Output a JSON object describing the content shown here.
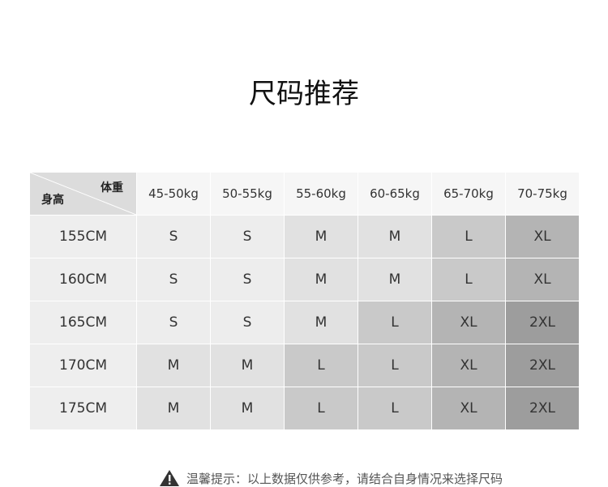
{
  "title": "尺码推荐",
  "corner": {
    "weight_label": "体重",
    "height_label": "身高"
  },
  "weights": [
    "45-50kg",
    "50-55kg",
    "55-60kg",
    "60-65kg",
    "65-70kg",
    "70-75kg"
  ],
  "rows": [
    {
      "height": "155CM",
      "sizes": [
        "S",
        "S",
        "M",
        "M",
        "L",
        "XL"
      ]
    },
    {
      "height": "160CM",
      "sizes": [
        "S",
        "S",
        "M",
        "M",
        "L",
        "XL"
      ]
    },
    {
      "height": "165CM",
      "sizes": [
        "S",
        "S",
        "M",
        "L",
        "XL",
        "2XL"
      ]
    },
    {
      "height": "170CM",
      "sizes": [
        "M",
        "M",
        "L",
        "L",
        "XL",
        "2XL"
      ]
    },
    {
      "height": "175CM",
      "sizes": [
        "M",
        "M",
        "L",
        "L",
        "XL",
        "2XL"
      ]
    }
  ],
  "size_colors": {
    "S": "#ededed",
    "M": "#e1e1e1",
    "L": "#c9c9c9",
    "XL": "#b4b4b4",
    "2XL": "#9d9d9d"
  },
  "tip": {
    "icon": "warning-icon",
    "text": "温馨提示：以上数据仅供参考，请结合自身情况来选择尺码"
  }
}
